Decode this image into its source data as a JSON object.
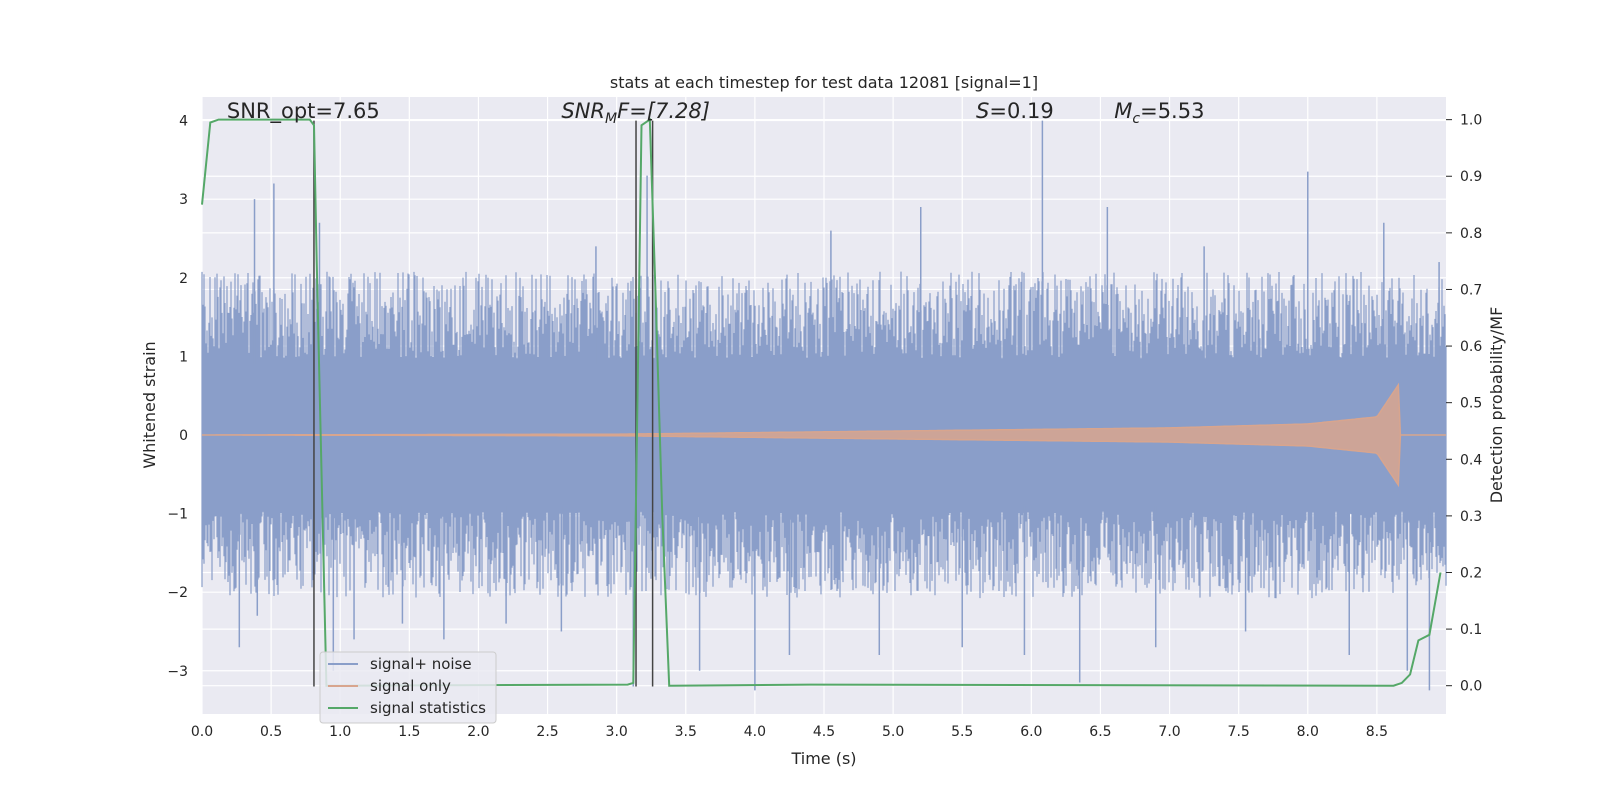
{
  "chart_data": {
    "type": "line",
    "title": "stats at each timestep for test data 12081 [signal=1]",
    "xlabel": "Time (s)",
    "ylabel_left": "Whitened strain",
    "ylabel_right": "Detection probability/MF",
    "xlim": [
      0,
      9
    ],
    "ylim_left": [
      -3.55,
      4.3
    ],
    "ylim_right": [
      -0.05,
      1.04
    ],
    "x_ticks": [
      0.0,
      0.5,
      1.0,
      1.5,
      2.0,
      2.5,
      3.0,
      3.5,
      4.0,
      4.5,
      5.0,
      5.5,
      6.0,
      6.5,
      7.0,
      7.5,
      8.0,
      8.5
    ],
    "x_tick_labels": [
      "0.0",
      "0.5",
      "1.0",
      "1.5",
      "2.0",
      "2.5",
      "3.0",
      "3.5",
      "4.0",
      "4.5",
      "5.0",
      "5.5",
      "6.0",
      "6.5",
      "7.0",
      "7.5",
      "8.0",
      "8.5"
    ],
    "y_left_ticks": [
      -3,
      -2,
      -1,
      0,
      1,
      2,
      3,
      4
    ],
    "y_left_tick_labels": [
      "−3",
      "−2",
      "−1",
      "0",
      "1",
      "2",
      "3",
      "4"
    ],
    "y_right_ticks": [
      0.0,
      0.1,
      0.2,
      0.3,
      0.4,
      0.5,
      0.6,
      0.7,
      0.8,
      0.9,
      1.0
    ],
    "y_right_tick_labels": [
      "0.0",
      "0.1",
      "0.2",
      "0.3",
      "0.4",
      "0.5",
      "0.6",
      "0.7",
      "0.8",
      "0.9",
      "1.0"
    ],
    "grid": true,
    "legend_position": "lower-left",
    "series": [
      {
        "name": "signal+ noise",
        "axis": "left",
        "color": "#8a9ec9",
        "noise_band": {
          "typical_low": -1.3,
          "typical_high": 1.3
        },
        "spikes": [
          [
            0.27,
            -2.7
          ],
          [
            0.38,
            3.0
          ],
          [
            0.4,
            -2.3
          ],
          [
            0.52,
            3.2
          ],
          [
            0.85,
            2.7
          ],
          [
            0.95,
            -3.0
          ],
          [
            1.1,
            -2.6
          ],
          [
            1.45,
            -2.4
          ],
          [
            1.75,
            -2.6
          ],
          [
            2.2,
            -2.4
          ],
          [
            2.6,
            -2.5
          ],
          [
            2.85,
            2.4
          ],
          [
            3.12,
            -3.2
          ],
          [
            3.22,
            3.3
          ],
          [
            3.6,
            -3.0
          ],
          [
            4.0,
            -3.25
          ],
          [
            4.25,
            -2.8
          ],
          [
            4.55,
            2.6
          ],
          [
            4.9,
            -2.8
          ],
          [
            5.2,
            2.9
          ],
          [
            5.5,
            -2.7
          ],
          [
            5.95,
            -2.8
          ],
          [
            6.08,
            4.0
          ],
          [
            6.35,
            -3.15
          ],
          [
            6.55,
            2.9
          ],
          [
            6.9,
            -2.7
          ],
          [
            7.25,
            2.4
          ],
          [
            7.55,
            -2.5
          ],
          [
            8.0,
            3.35
          ],
          [
            8.3,
            -2.8
          ],
          [
            8.55,
            2.7
          ],
          [
            8.72,
            -3.0
          ],
          [
            8.88,
            -3.25
          ],
          [
            8.95,
            2.2
          ]
        ]
      },
      {
        "name": "signal only",
        "axis": "left",
        "color": "#d8a58e",
        "envelope": {
          "x": [
            0.0,
            3.0,
            5.0,
            7.0,
            8.0,
            8.5,
            8.66,
            8.67,
            9.0
          ],
          "amp": [
            0.0,
            0.01,
            0.05,
            0.09,
            0.14,
            0.23,
            0.65,
            0.0,
            0.0
          ]
        }
      },
      {
        "name": "signal statistics",
        "axis": "right",
        "color": "#55a868",
        "x": [
          0.0,
          0.06,
          0.12,
          0.4,
          0.78,
          0.81,
          0.83,
          0.9,
          1.0,
          3.08,
          3.12,
          3.18,
          3.24,
          3.28,
          3.33,
          3.38,
          4.4,
          8.62,
          8.68,
          8.74,
          8.8,
          8.88,
          8.96
        ],
        "y": [
          0.85,
          0.995,
          1.0,
          1.0,
          1.0,
          0.99,
          0.75,
          0.0,
          0.0,
          0.002,
          0.005,
          0.99,
          1.0,
          0.7,
          0.3,
          0.0,
          0.002,
          0.0,
          0.005,
          0.02,
          0.08,
          0.09,
          0.2
        ]
      }
    ],
    "vertical_lines": [
      {
        "x": 0.81,
        "from": -3.2,
        "to": 4.0
      },
      {
        "x": 3.14,
        "from": -3.2,
        "to": 4.0
      },
      {
        "x": 3.26,
        "from": -3.2,
        "to": 4.0
      }
    ],
    "annotations": [
      {
        "id": "snr-opt",
        "text": "SNR_opt=7.65",
        "x": 0.18,
        "y": 4.03
      },
      {
        "id": "snr-mf",
        "prefix": "SNR",
        "sub": "M",
        "suffix": "F=[7.28]",
        "x": 2.6,
        "y": 4.03
      },
      {
        "id": "s-val",
        "italic": "S",
        "suffix": "=0.19",
        "x": 5.6,
        "y": 4.03
      },
      {
        "id": "mc-val",
        "italic": "M",
        "sub": "c",
        "suffix": "=5.53",
        "x": 6.6,
        "y": 4.03
      }
    ]
  }
}
